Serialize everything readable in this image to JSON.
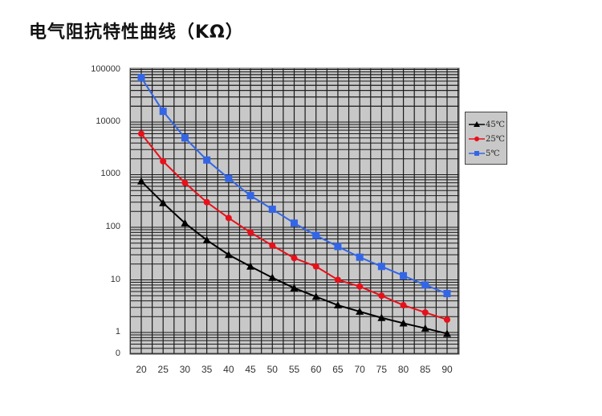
{
  "title": "电气阻抗特性曲线（KΩ）",
  "chart_data": {
    "type": "line",
    "title": "电气阻抗特性曲线（KΩ）",
    "xlabel": "",
    "ylabel": "",
    "yscale": "log",
    "ylim": [
      0.4,
      100000
    ],
    "grid": true,
    "legend_position": "right",
    "x": [
      20,
      25,
      30,
      35,
      40,
      45,
      50,
      55,
      60,
      65,
      70,
      75,
      80,
      85,
      90
    ],
    "x_tick_labels": [
      "20",
      "25",
      "30",
      "35",
      "40",
      "45",
      "50",
      "55",
      "60",
      "65",
      "70",
      "75",
      "80",
      "85",
      "90"
    ],
    "y_tick_labels": [
      "100000",
      "10000",
      "1000",
      "100",
      "10",
      "1",
      "0"
    ],
    "series": [
      {
        "name": "45℃",
        "color": "#000000",
        "marker": "triangle",
        "values": [
          750,
          290,
          120,
          57,
          30,
          18,
          11,
          7,
          4.8,
          3.3,
          2.5,
          1.9,
          1.5,
          1.2,
          0.95
        ]
      },
      {
        "name": "25℃",
        "color": "#e8101a",
        "marker": "circle",
        "values": [
          6000,
          1800,
          700,
          300,
          150,
          80,
          45,
          26,
          18,
          10,
          7.5,
          5,
          3.3,
          2.4,
          1.75
        ]
      },
      {
        "name": "5℃",
        "color": "#3366e6",
        "marker": "square",
        "values": [
          70000,
          16000,
          5000,
          1900,
          850,
          400,
          220,
          120,
          70,
          43,
          27,
          18,
          12,
          8,
          5.5
        ]
      }
    ]
  },
  "legend": {
    "items": [
      {
        "label": "45℃",
        "color": "#000000",
        "marker": "triangle"
      },
      {
        "label": "25℃",
        "color": "#e8101a",
        "marker": "circle"
      },
      {
        "label": "5℃",
        "color": "#3366e6",
        "marker": "square"
      }
    ]
  },
  "colors": {
    "plot_background": "#c8c8c8",
    "grid": "#1a1a1a"
  }
}
